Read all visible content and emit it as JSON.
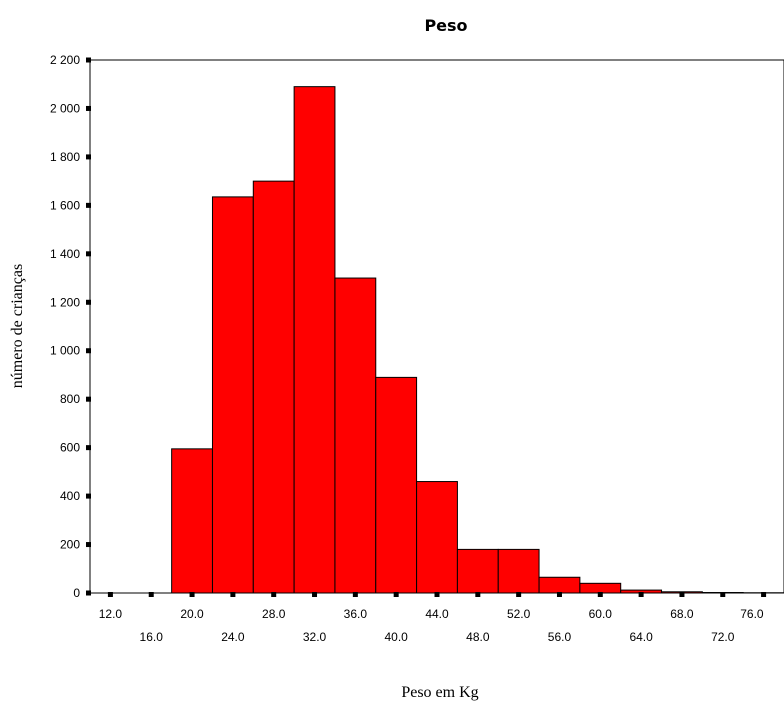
{
  "chart_data": {
    "type": "bar",
    "title": "Peso",
    "xlabel": "Peso em Kg",
    "ylabel": "número de crianças",
    "bin_width": 4,
    "x_tick_labels": [
      "12.0",
      "16.0",
      "20.0",
      "24.0",
      "28.0",
      "32.0",
      "36.0",
      "40.0",
      "44.0",
      "48.0",
      "52.0",
      "56.0",
      "60.0",
      "64.0",
      "68.0",
      "72.0",
      "76.0"
    ],
    "y_tick_labels": [
      "0",
      "200",
      "400",
      "600",
      "800",
      "1 000",
      "1 200",
      "1 400",
      "1 600",
      "1 800",
      "2 000",
      "2 200"
    ],
    "ylim": [
      0,
      2200
    ],
    "xlim": [
      10,
      78
    ],
    "categories": [
      "12.0",
      "16.0",
      "20.0",
      "24.0",
      "28.0",
      "32.0",
      "36.0",
      "40.0",
      "44.0",
      "48.0",
      "52.0",
      "56.0",
      "60.0",
      "64.0",
      "68.0",
      "72.0",
      "76.0"
    ],
    "x": [
      12,
      16,
      20,
      24,
      28,
      32,
      36,
      40,
      44,
      48,
      52,
      56,
      60,
      64,
      68,
      72,
      76
    ],
    "values": [
      0,
      0,
      595,
      1635,
      1700,
      2090,
      1300,
      890,
      460,
      180,
      180,
      65,
      40,
      12,
      5,
      2,
      1
    ],
    "grid": false,
    "bar_color": "#ff0000"
  }
}
